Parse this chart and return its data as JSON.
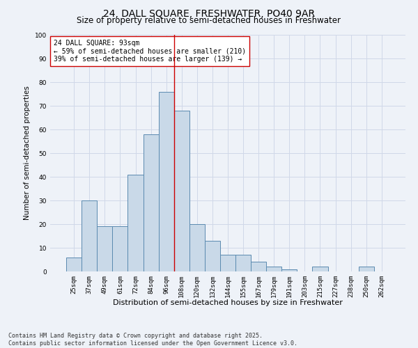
{
  "title": "24, DALL SQUARE, FRESHWATER, PO40 9AR",
  "subtitle": "Size of property relative to semi-detached houses in Freshwater",
  "xlabel": "Distribution of semi-detached houses by size in Freshwater",
  "ylabel": "Number of semi-detached properties",
  "categories": [
    "25sqm",
    "37sqm",
    "49sqm",
    "61sqm",
    "72sqm",
    "84sqm",
    "96sqm",
    "108sqm",
    "120sqm",
    "132sqm",
    "144sqm",
    "155sqm",
    "167sqm",
    "179sqm",
    "191sqm",
    "203sqm",
    "215sqm",
    "227sqm",
    "238sqm",
    "250sqm",
    "262sqm"
  ],
  "values": [
    6,
    30,
    19,
    19,
    41,
    58,
    76,
    68,
    20,
    13,
    7,
    7,
    4,
    2,
    1,
    0,
    2,
    0,
    0,
    2,
    0
  ],
  "bar_color": "#c9d9e8",
  "bar_edge_color": "#5a8ab0",
  "grid_color": "#d0d8e8",
  "background_color": "#eef2f8",
  "vline_x": 6.5,
  "vline_color": "#cc0000",
  "annotation_text": "24 DALL SQUARE: 93sqm\n← 59% of semi-detached houses are smaller (210)\n39% of semi-detached houses are larger (139) →",
  "annotation_box_color": "#ffffff",
  "annotation_box_edgecolor": "#cc0000",
  "ylim": [
    0,
    100
  ],
  "yticks": [
    0,
    10,
    20,
    30,
    40,
    50,
    60,
    70,
    80,
    90,
    100
  ],
  "footnote": "Contains HM Land Registry data © Crown copyright and database right 2025.\nContains public sector information licensed under the Open Government Licence v3.0.",
  "title_fontsize": 10,
  "subtitle_fontsize": 8.5,
  "xlabel_fontsize": 8,
  "ylabel_fontsize": 7.5,
  "tick_fontsize": 6.5,
  "annotation_fontsize": 7,
  "footnote_fontsize": 6
}
